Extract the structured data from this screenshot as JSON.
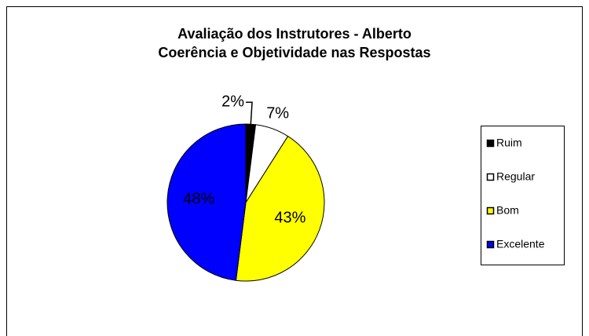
{
  "chart_data": {
    "type": "pie",
    "title": [
      "Avaliação dos Instrutores - Alberto",
      "Coerência e Objetividade nas Respostas"
    ],
    "categories": [
      "Ruim",
      "Regular",
      "Bom",
      "Excelente"
    ],
    "values": [
      2,
      7,
      43,
      48
    ],
    "value_labels": [
      "2%",
      "7%",
      "43%",
      "48%"
    ],
    "colors": [
      "#000000",
      "#ffffff",
      "#ffff00",
      "#0000ff"
    ],
    "legend": "right"
  }
}
